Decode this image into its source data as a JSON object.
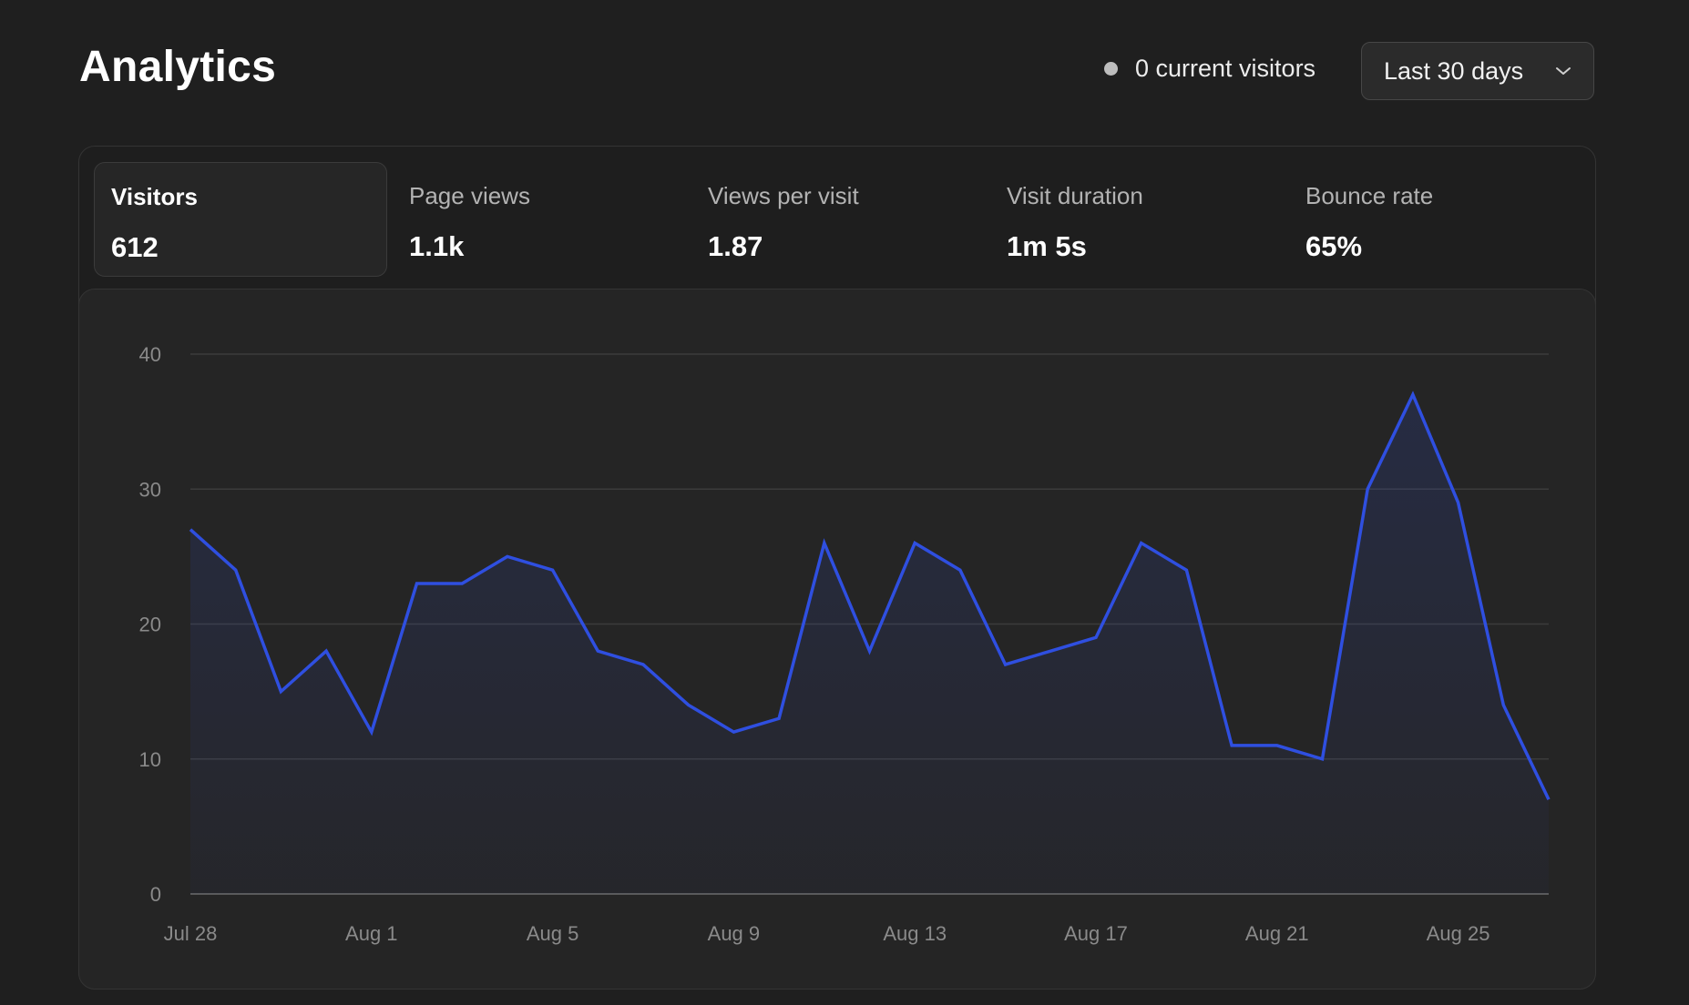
{
  "header": {
    "title": "Analytics",
    "current_visitors": "0 current visitors",
    "range_label": "Last 30 days"
  },
  "metrics": [
    {
      "label": "Visitors",
      "value": "612"
    },
    {
      "label": "Page views",
      "value": "1.1k"
    },
    {
      "label": "Views per visit",
      "value": "1.87"
    },
    {
      "label": "Visit duration",
      "value": "1m 5s"
    },
    {
      "label": "Bounce rate",
      "value": "65%"
    }
  ],
  "colors": {
    "line": "#2f4fe0",
    "status_dot": "#bdbdbd"
  },
  "icons": {
    "range_select": "chevron-down-icon",
    "status": "status-dot-icon"
  },
  "chart_data": {
    "type": "area",
    "x": [
      "Jul 28",
      "Jul 29",
      "Jul 30",
      "Jul 31",
      "Aug 1",
      "Aug 2",
      "Aug 3",
      "Aug 4",
      "Aug 5",
      "Aug 6",
      "Aug 7",
      "Aug 8",
      "Aug 9",
      "Aug 10",
      "Aug 11",
      "Aug 12",
      "Aug 13",
      "Aug 14",
      "Aug 15",
      "Aug 16",
      "Aug 17",
      "Aug 18",
      "Aug 19",
      "Aug 20",
      "Aug 21",
      "Aug 22",
      "Aug 23",
      "Aug 24",
      "Aug 25",
      "Aug 26",
      "Aug 27"
    ],
    "series": [
      {
        "values": [
          27,
          24,
          15,
          18,
          12,
          23,
          23,
          25,
          24,
          18,
          17,
          14,
          12,
          13,
          26,
          18,
          26,
          24,
          17,
          18,
          19,
          26,
          24,
          11,
          11,
          10,
          30,
          37,
          29,
          14,
          7
        ]
      }
    ],
    "x_tick_labels": [
      "Jul 28",
      "Aug 1",
      "Aug 5",
      "Aug 9",
      "Aug 13",
      "Aug 17",
      "Aug 21",
      "Aug 25"
    ],
    "y_ticks": [
      "0",
      "10",
      "20",
      "30",
      "40"
    ],
    "ylim": [
      0,
      40
    ],
    "grid": true,
    "legend": "none"
  }
}
